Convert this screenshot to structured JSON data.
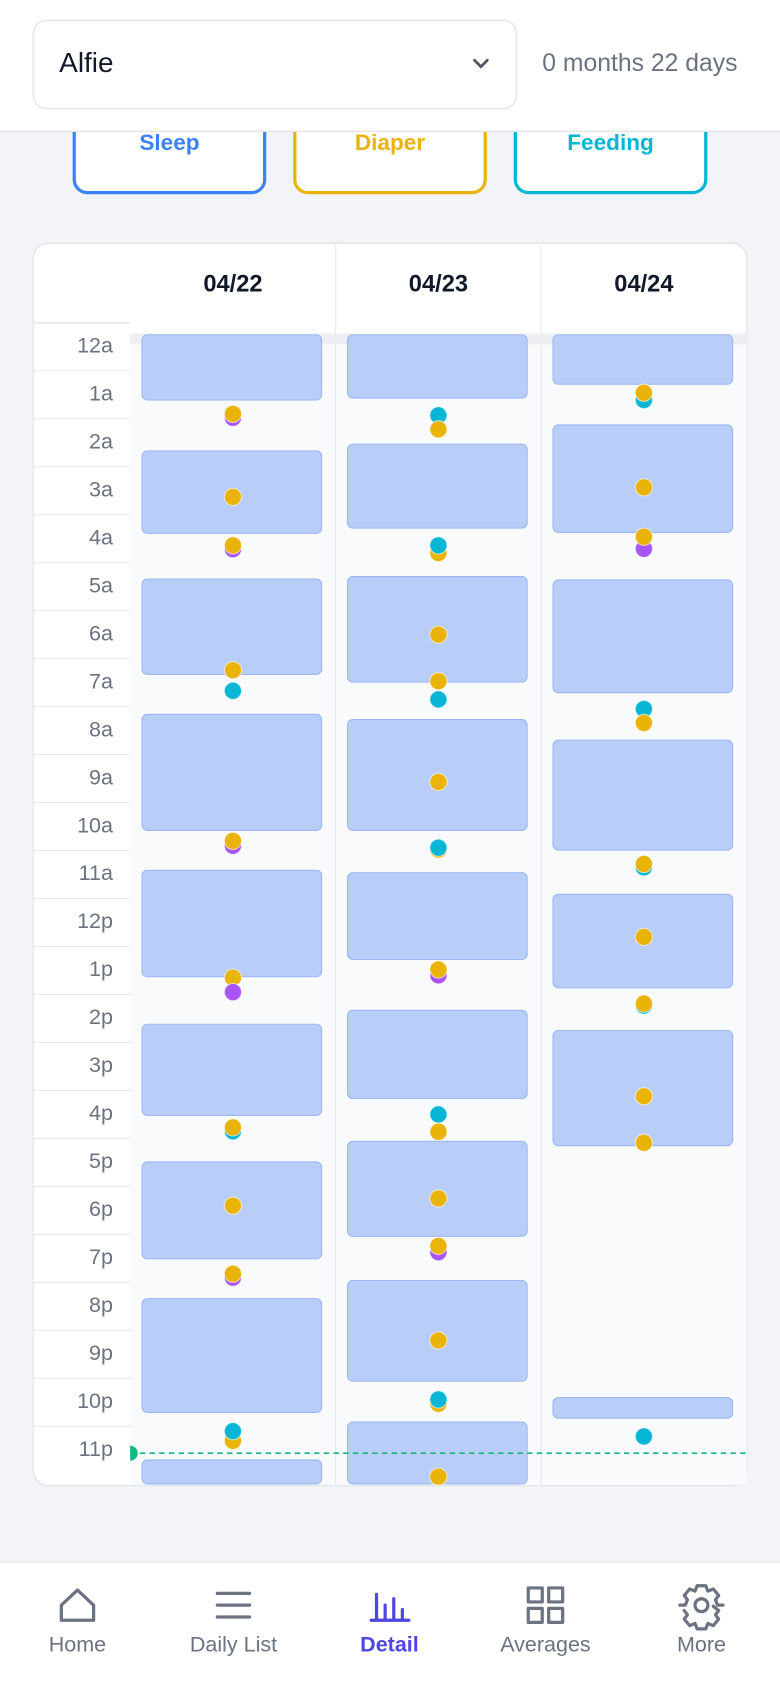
{
  "header": {
    "child": "Alfie",
    "age": "0 months 22 days"
  },
  "legend": [
    {
      "label": "Sleep",
      "color": "#3b82f6"
    },
    {
      "label": "Diaper",
      "color": "#eab308"
    },
    {
      "label": "Feeding",
      "color": "#06b6d4"
    }
  ],
  "sleep_fill": "#b8cdf8",
  "hours": [
    "12a",
    "1a",
    "2a",
    "3a",
    "4a",
    "5a",
    "6a",
    "7a",
    "8a",
    "9a",
    "10a",
    "11a",
    "12p",
    "1p",
    "2p",
    "3p",
    "4p",
    "5p",
    "6p",
    "7p",
    "8p",
    "9p",
    "10p",
    "11p"
  ],
  "days": [
    {
      "date": "04/22",
      "sleep": [
        [
          0.25,
          1.61
        ],
        [
          2.67,
          4.39
        ],
        [
          5.34,
          7.33
        ],
        [
          8.16,
          10.58
        ],
        [
          11.41,
          13.63
        ],
        [
          14.62,
          16.52
        ],
        [
          17.49,
          19.51
        ],
        [
          20.34,
          22.71
        ],
        [
          23.7,
          24.2
        ]
      ],
      "events": [
        {
          "t": 1.98,
          "color": "#a855f7"
        },
        {
          "t": 1.9,
          "color": "#eab308"
        },
        {
          "t": 3.63,
          "color": "#eab308"
        },
        {
          "t": 4.72,
          "color": "#a855f7"
        },
        {
          "t": 4.64,
          "color": "#eab308"
        },
        {
          "t": 7.24,
          "color": "#eab308"
        },
        {
          "t": 7.67,
          "color": "#06b6d4"
        },
        {
          "t": 10.9,
          "color": "#a855f7"
        },
        {
          "t": 10.8,
          "color": "#eab308"
        },
        {
          "t": 13.65,
          "color": "#eab308"
        },
        {
          "t": 13.95,
          "color": "#a855f7"
        },
        {
          "t": 16.85,
          "color": "#06b6d4"
        },
        {
          "t": 16.77,
          "color": "#eab308"
        },
        {
          "t": 18.4,
          "color": "#eab308"
        },
        {
          "t": 19.9,
          "color": "#a855f7"
        },
        {
          "t": 19.82,
          "color": "#eab308"
        },
        {
          "t": 23.3,
          "color": "#eab308"
        },
        {
          "t": 23.1,
          "color": "#06b6d4"
        }
      ]
    },
    {
      "date": "04/23",
      "sleep": [
        [
          0.25,
          1.57
        ],
        [
          2.53,
          4.28
        ],
        [
          5.29,
          7.49
        ],
        [
          8.27,
          10.58
        ],
        [
          11.46,
          13.27
        ],
        [
          14.33,
          16.17
        ],
        [
          17.06,
          19.04
        ],
        [
          19.96,
          22.06
        ],
        [
          22.91,
          24.2
        ]
      ],
      "events": [
        {
          "t": 1.93,
          "color": "#06b6d4"
        },
        {
          "t": 2.22,
          "color": "#eab308"
        },
        {
          "t": 4.8,
          "color": "#eab308"
        },
        {
          "t": 4.64,
          "color": "#06b6d4"
        },
        {
          "t": 6.5,
          "color": "#eab308"
        },
        {
          "t": 7.47,
          "color": "#eab308"
        },
        {
          "t": 7.85,
          "color": "#06b6d4"
        },
        {
          "t": 9.57,
          "color": "#eab308"
        },
        {
          "t": 10.98,
          "color": "#eab308"
        },
        {
          "t": 10.94,
          "color": "#06b6d4"
        },
        {
          "t": 13.6,
          "color": "#a855f7"
        },
        {
          "t": 13.48,
          "color": "#eab308"
        },
        {
          "t": 16.5,
          "color": "#06b6d4"
        },
        {
          "t": 16.86,
          "color": "#eab308"
        },
        {
          "t": 18.25,
          "color": "#eab308"
        },
        {
          "t": 19.37,
          "color": "#a855f7"
        },
        {
          "t": 19.24,
          "color": "#eab308"
        },
        {
          "t": 21.21,
          "color": "#eab308"
        },
        {
          "t": 22.53,
          "color": "#eab308"
        },
        {
          "t": 22.44,
          "color": "#06b6d4"
        },
        {
          "t": 24.05,
          "color": "#eab308"
        }
      ]
    },
    {
      "date": "04/24",
      "sleep": [
        [
          0.25,
          1.28
        ],
        [
          2.13,
          4.37
        ],
        [
          5.36,
          7.71
        ],
        [
          8.7,
          10.99
        ],
        [
          11.91,
          13.86
        ],
        [
          14.75,
          17.15
        ],
        [
          22.4,
          22.83
        ]
      ],
      "events": [
        {
          "t": 1.61,
          "color": "#06b6d4"
        },
        {
          "t": 1.46,
          "color": "#eab308"
        },
        {
          "t": 3.43,
          "color": "#eab308"
        },
        {
          "t": 4.71,
          "color": "#a855f7"
        },
        {
          "t": 4.46,
          "color": "#eab308"
        },
        {
          "t": 8.05,
          "color": "#06b6d4"
        },
        {
          "t": 8.34,
          "color": "#eab308"
        },
        {
          "t": 11.35,
          "color": "#06b6d4"
        },
        {
          "t": 11.28,
          "color": "#eab308"
        },
        {
          "t": 12.8,
          "color": "#eab308"
        },
        {
          "t": 14.23,
          "color": "#06b6d4"
        },
        {
          "t": 14.19,
          "color": "#eab308"
        },
        {
          "t": 16.12,
          "color": "#eab308"
        },
        {
          "t": 17.09,
          "color": "#eab308"
        },
        {
          "t": 23.21,
          "color": "#06b6d4"
        }
      ]
    }
  ],
  "now": 23.56,
  "nav": [
    {
      "label": "Home"
    },
    {
      "label": "Daily List"
    },
    {
      "label": "Detail",
      "active": true
    },
    {
      "label": "Averages"
    },
    {
      "label": "More"
    }
  ]
}
